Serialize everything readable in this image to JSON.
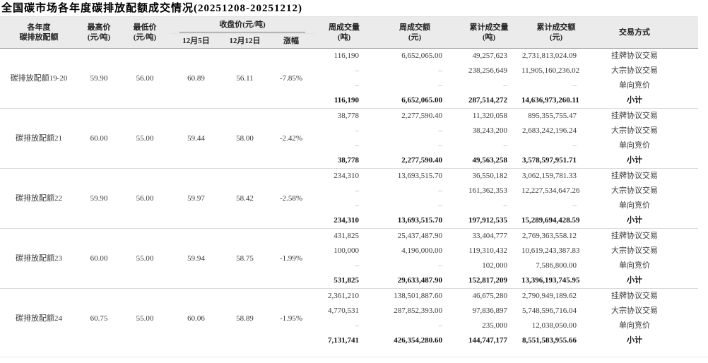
{
  "title": "全国碳市场各年度碳排放配额成交情况(20251208-20251212)",
  "colors": {
    "header_bg": "#ebebeb",
    "group_divider": "#dcdcdc",
    "header_rule": "#a8a8a8",
    "body_text": "#3a3a3a",
    "dash_text": "#9a9a9a"
  },
  "table": {
    "headers": {
      "product": [
        "各年度",
        "碳排放配额"
      ],
      "high": [
        "最高价",
        "(元/吨)"
      ],
      "low": [
        "最低价",
        "(元/吨)"
      ],
      "close_group": "收盘价(元/吨)",
      "close_sub": [
        "12月5日",
        "12月12日",
        "涨幅"
      ],
      "weekly_volume": [
        "周成交量",
        "(吨)"
      ],
      "weekly_amount": [
        "周成交额",
        "(元)"
      ],
      "cumulative_volume": [
        "累计成交量",
        "(吨)"
      ],
      "cumulative_amount": [
        "累计成交额",
        "(元)"
      ],
      "method": "交易方式"
    },
    "groups": [
      {
        "name": "碳排放配额19-20",
        "high": "59.90",
        "low": "56.00",
        "close_dec5": "60.89",
        "close_dec12": "56.11",
        "change": "-7.85%",
        "rows": [
          {
            "weekly_volume": "116,190",
            "weekly_amount": "6,652,065.00",
            "cumulative_volume": "49,257,623",
            "cumulative_amount": "2,731,813,024.09",
            "method": "挂牌协议交易"
          },
          {
            "weekly_volume": "–",
            "weekly_amount": "–",
            "cumulative_volume": "238,256,649",
            "cumulative_amount": "11,905,160,236.02",
            "method": "大宗协议交易"
          },
          {
            "weekly_volume": "–",
            "weekly_amount": "–",
            "cumulative_volume": "–",
            "cumulative_amount": "–",
            "method": "单向竞价"
          },
          {
            "weekly_volume": "116,190",
            "weekly_amount": "6,652,065.00",
            "cumulative_volume": "287,514,272",
            "cumulative_amount": "14,636,973,260.11",
            "method": "小计"
          }
        ]
      },
      {
        "name": "碳排放配额21",
        "high": "60.00",
        "low": "55.00",
        "close_dec5": "59.44",
        "close_dec12": "58.00",
        "change": "-2.42%",
        "rows": [
          {
            "weekly_volume": "38,778",
            "weekly_amount": "2,277,590.40",
            "cumulative_volume": "11,320,058",
            "cumulative_amount": "895,355,755.47",
            "method": "挂牌协议交易"
          },
          {
            "weekly_volume": "–",
            "weekly_amount": "–",
            "cumulative_volume": "38,243,200",
            "cumulative_amount": "2,683,242,196.24",
            "method": "大宗协议交易"
          },
          {
            "weekly_volume": "–",
            "weekly_amount": "–",
            "cumulative_volume": "–",
            "cumulative_amount": "–",
            "method": "单向竞价"
          },
          {
            "weekly_volume": "38,778",
            "weekly_amount": "2,277,590.40",
            "cumulative_volume": "49,563,258",
            "cumulative_amount": "3,578,597,951.71",
            "method": "小计"
          }
        ]
      },
      {
        "name": "碳排放配额22",
        "high": "59.90",
        "low": "56.00",
        "close_dec5": "59.97",
        "close_dec12": "58.42",
        "change": "-2.58%",
        "rows": [
          {
            "weekly_volume": "234,310",
            "weekly_amount": "13,693,515.70",
            "cumulative_volume": "36,550,182",
            "cumulative_amount": "3,062,159,781.33",
            "method": "挂牌协议交易"
          },
          {
            "weekly_volume": "–",
            "weekly_amount": "–",
            "cumulative_volume": "161,362,353",
            "cumulative_amount": "12,227,534,647.26",
            "method": "大宗协议交易"
          },
          {
            "weekly_volume": "–",
            "weekly_amount": "–",
            "cumulative_volume": "–",
            "cumulative_amount": "–",
            "method": "单向竞价"
          },
          {
            "weekly_volume": "234,310",
            "weekly_amount": "13,693,515.70",
            "cumulative_volume": "197,912,535",
            "cumulative_amount": "15,289,694,428.59",
            "method": "小计"
          }
        ]
      },
      {
        "name": "碳排放配额23",
        "high": "60.00",
        "low": "55.00",
        "close_dec5": "59.94",
        "close_dec12": "58.75",
        "change": "-1.99%",
        "rows": [
          {
            "weekly_volume": "431,825",
            "weekly_amount": "25,437,487.90",
            "cumulative_volume": "33,404,777",
            "cumulative_amount": "2,769,363,558.12",
            "method": "挂牌协议交易"
          },
          {
            "weekly_volume": "100,000",
            "weekly_amount": "4,196,000.00",
            "cumulative_volume": "119,310,432",
            "cumulative_amount": "10,619,243,387.83",
            "method": "大宗协议交易"
          },
          {
            "weekly_volume": "–",
            "weekly_amount": "–",
            "cumulative_volume": "102,000",
            "cumulative_amount": "7,586,800.00",
            "method": "单向竞价"
          },
          {
            "weekly_volume": "531,825",
            "weekly_amount": "29,633,487.90",
            "cumulative_volume": "152,817,209",
            "cumulative_amount": "13,396,193,745.95",
            "method": "小计"
          }
        ]
      },
      {
        "name": "碳排放配额24",
        "high": "60.75",
        "low": "55.00",
        "close_dec5": "60.06",
        "close_dec12": "58.89",
        "change": "-1.95%",
        "rows": [
          {
            "weekly_volume": "2,361,210",
            "weekly_amount": "138,501,887.60",
            "cumulative_volume": "46,675,280",
            "cumulative_amount": "2,790,949,189.62",
            "method": "挂牌协议交易"
          },
          {
            "weekly_volume": "4,770,531",
            "weekly_amount": "287,852,393.00",
            "cumulative_volume": "97,836,897",
            "cumulative_amount": "5,748,596,716.04",
            "method": "大宗协议交易"
          },
          {
            "weekly_volume": "–",
            "weekly_amount": "–",
            "cumulative_volume": "235,000",
            "cumulative_amount": "12,038,050.00",
            "method": "单向竞价"
          },
          {
            "weekly_volume": "7,131,741",
            "weekly_amount": "426,354,280.60",
            "cumulative_volume": "144,747,177",
            "cumulative_amount": "8,551,583,955.66",
            "method": "小计"
          }
        ]
      }
    ]
  }
}
